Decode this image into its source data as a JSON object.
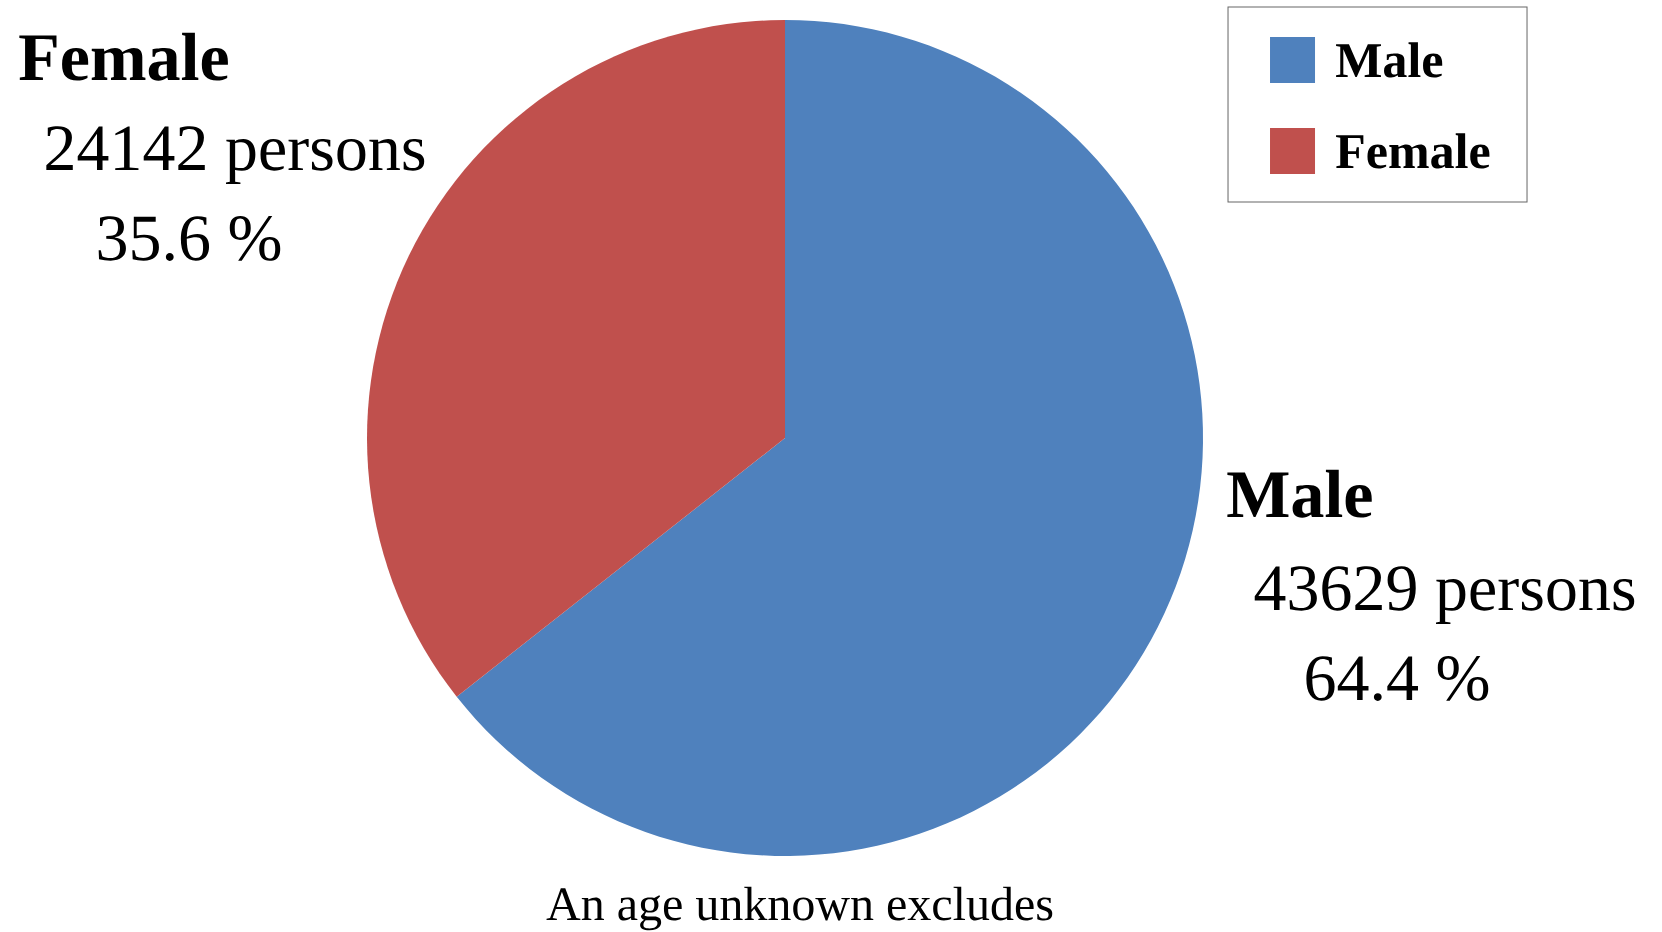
{
  "chart_data": {
    "type": "pie",
    "categories": [
      "Male",
      "Female"
    ],
    "values": [
      43629,
      24142
    ],
    "colors": [
      "#4f81bd",
      "#c0504d"
    ],
    "value_labels": [
      "43629 persons",
      "24142 persons"
    ],
    "annotations": [
      "64.4 %",
      "35.6 %",
      "An age unknown excludes"
    ],
    "legend": "top right"
  }
}
